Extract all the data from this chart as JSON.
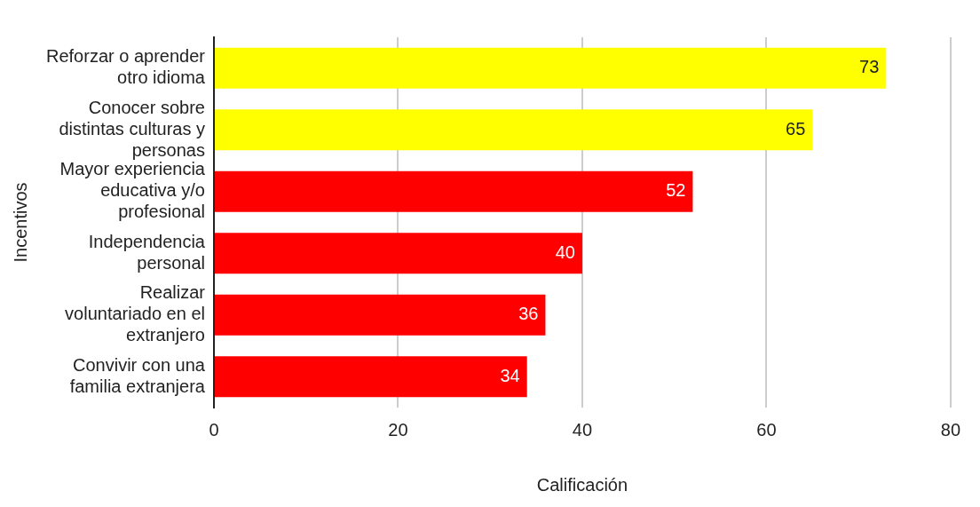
{
  "chart_data": {
    "type": "bar",
    "orientation": "horizontal",
    "xlabel": "Calificación",
    "ylabel": "Incentivos",
    "categories": [
      "Reforzar o aprender otro idioma",
      "Conocer sobre distintas culturas y personas",
      "Mayor experiencia educativa y/o profesional",
      "Independencia personal",
      "Realizar voluntariado en el extranjero",
      "Convivir con una familia extranjera"
    ],
    "values": [
      73,
      65,
      52,
      40,
      36,
      34
    ],
    "colors": [
      "#ffff00",
      "#ffff00",
      "#ff0000",
      "#ff0000",
      "#ff0000",
      "#ff0000"
    ],
    "xlim": [
      0,
      80
    ],
    "xticks": [
      0,
      20,
      40,
      60,
      80
    ],
    "grid": "x",
    "legend": false,
    "data_labels": true
  }
}
